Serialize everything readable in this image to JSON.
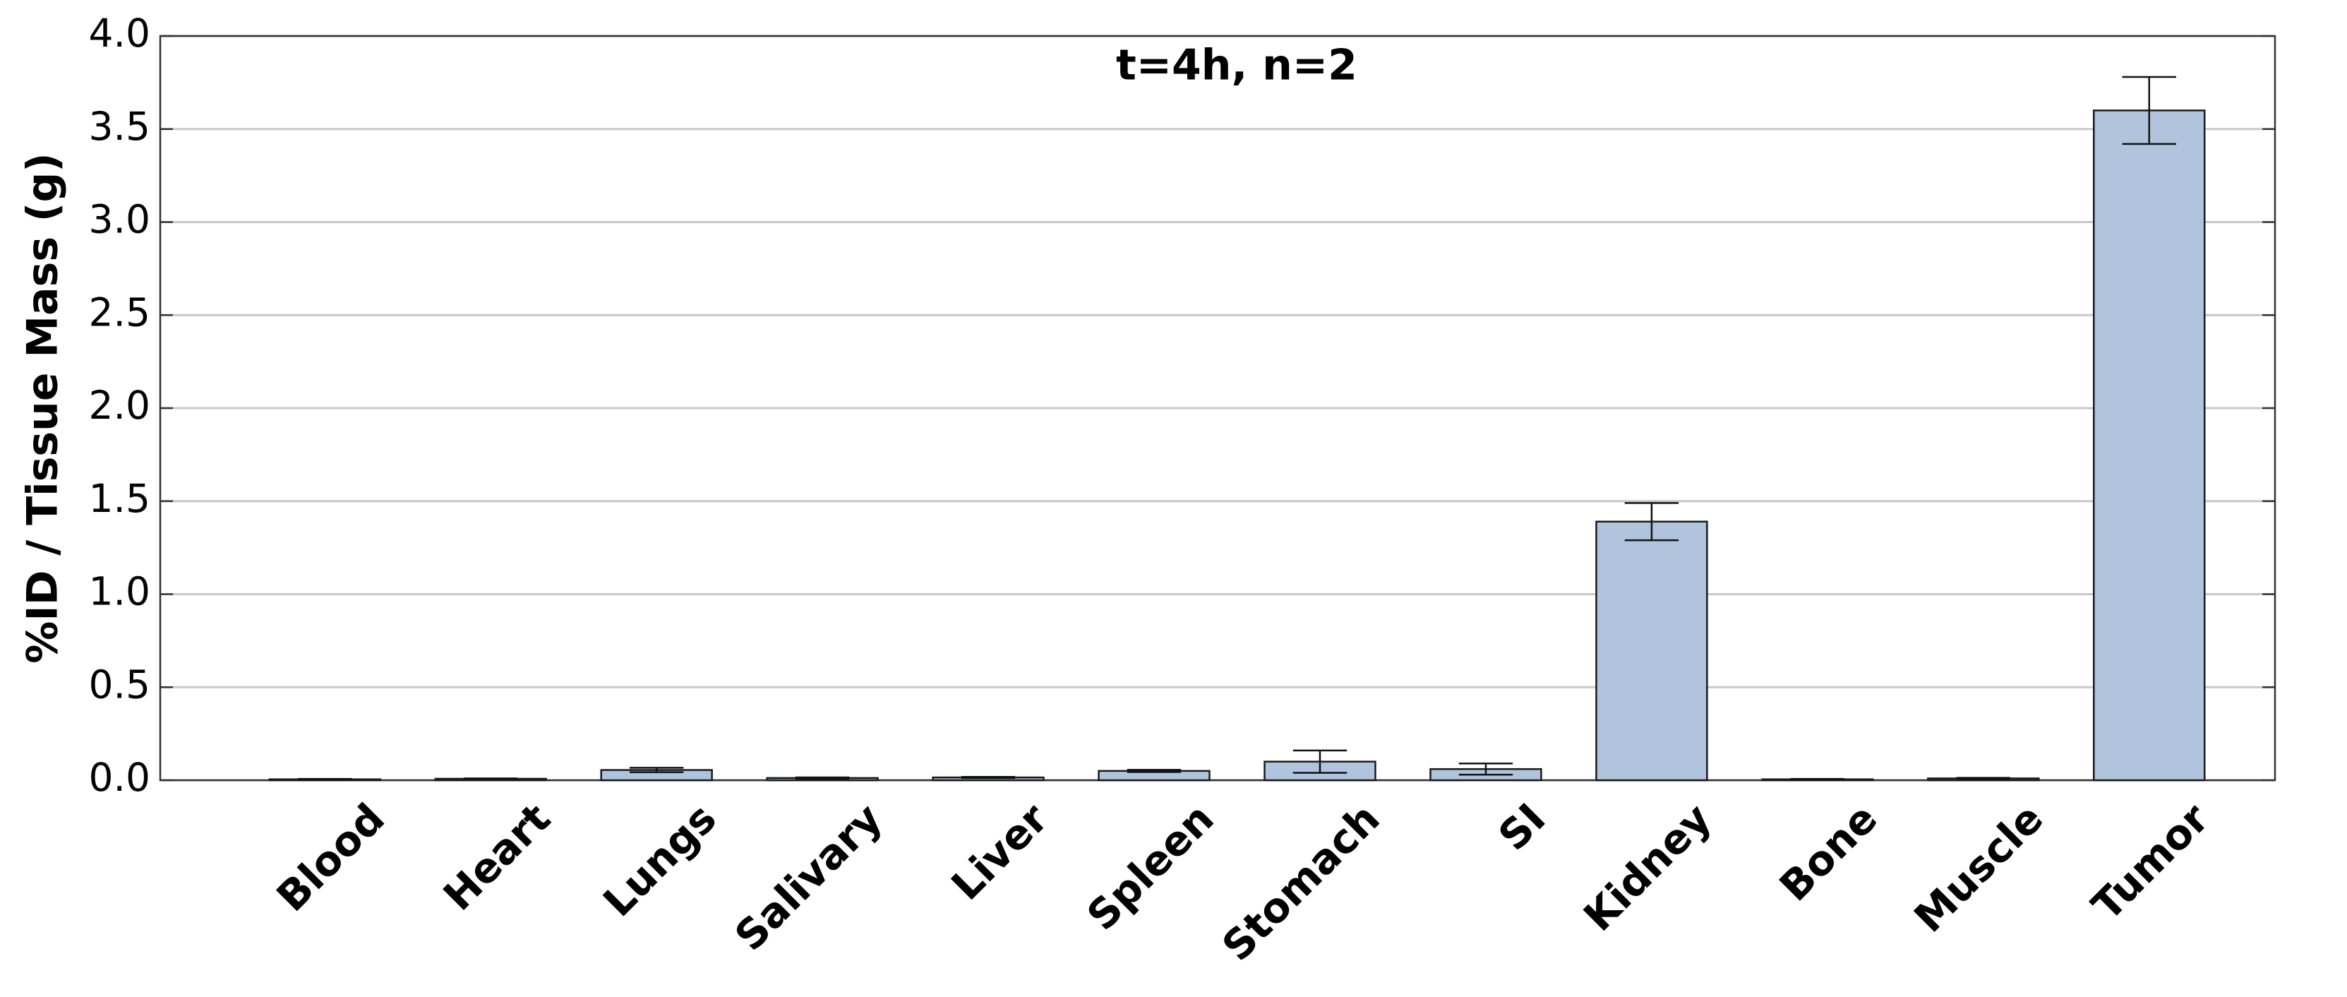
{
  "chart_data": {
    "type": "bar",
    "title": "t=4h, n=2",
    "y_label": "%ID / Tissue Mass (g)",
    "categories": [
      "Blood",
      "Heart",
      "Lungs",
      "Salivary",
      "Liver",
      "Spleen",
      "Stomach",
      "SI",
      "Kidney",
      "Bone",
      "Muscle",
      "Tumor"
    ],
    "values": [
      0.005,
      0.008,
      0.055,
      0.012,
      0.015,
      0.05,
      0.1,
      0.06,
      1.39,
      0.005,
      0.01,
      3.6
    ],
    "errors": [
      0.002,
      0.002,
      0.012,
      0.003,
      0.003,
      0.006,
      0.06,
      0.03,
      0.1,
      0.002,
      0.003,
      0.18
    ],
    "color": "#b0c4de",
    "edge_color": "#1a1a1a",
    "ylim": [
      0,
      4.0
    ],
    "yticks": [
      {
        "value": 0,
        "label": "0.0"
      },
      0.5,
      {
        "value": 1,
        "label": "1.0"
      },
      1.5,
      {
        "value": 2,
        "label": "2.0"
      },
      2.5,
      {
        "value": 3,
        "label": "3.0"
      },
      3.5,
      {
        "value": 4,
        "label": "4.0"
      }
    ],
    "grid": true
  }
}
